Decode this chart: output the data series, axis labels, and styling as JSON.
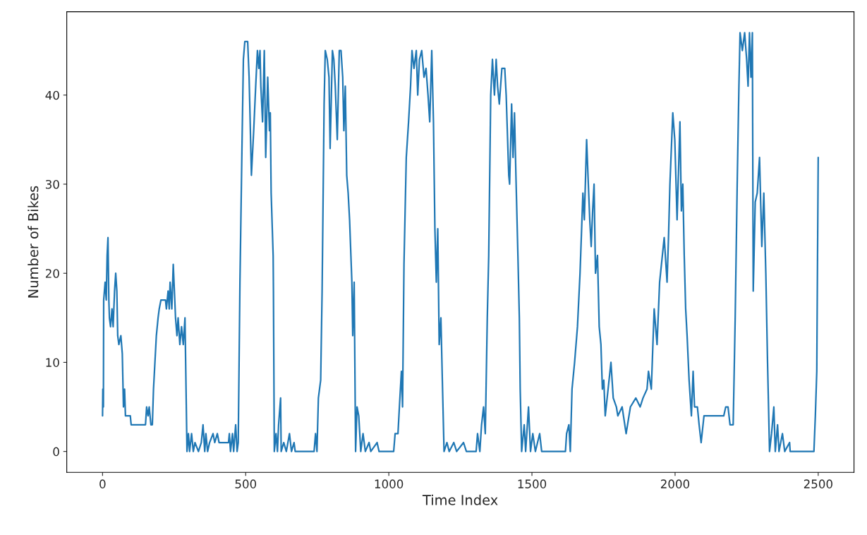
{
  "chart_data": {
    "type": "line",
    "xlabel": "Time Index",
    "ylabel": "Number of Bikes",
    "xlim": [
      -125,
      2625
    ],
    "ylim": [
      -2.35,
      49.35
    ],
    "xticks": [
      0,
      500,
      1000,
      1500,
      2000,
      2500
    ],
    "yticks": [
      0,
      10,
      20,
      30,
      40
    ],
    "grid": false,
    "marker": "none",
    "line_style": "solid",
    "series": [
      {
        "color": "#1f77b4",
        "x": [
          0,
          1,
          3,
          4,
          9,
          13,
          16,
          19,
          22,
          24,
          28,
          33,
          37,
          42,
          46,
          50,
          53,
          57,
          64,
          69,
          73,
          77,
          80,
          97,
          100,
          150,
          154,
          159,
          163,
          169,
          174,
          178,
          183,
          188,
          194,
          198,
          204,
          220,
          223,
          229,
          233,
          236,
          242,
          247,
          251,
          255,
          260,
          264,
          270,
          276,
          282,
          288,
          295,
          300,
          304,
          311,
          317,
          323,
          335,
          345,
          351,
          357,
          361,
          367,
          374,
          386,
          392,
          401,
          407,
          440,
          443,
          447,
          454,
          458,
          465,
          470,
          474,
          476,
          480,
          487,
          492,
          497,
          507,
          512,
          515,
          520,
          528,
          535,
          541,
          546,
          550,
          553,
          559,
          565,
          570,
          577,
          583,
          586,
          589,
          596,
          597,
          600,
          606,
          611,
          615,
          622,
          624,
          633,
          642,
          653,
          660,
          669,
          673,
          739,
          744,
          749,
          754,
          762,
          767,
          774,
          778,
          785,
          791,
          795,
          803,
          808,
          813,
          820,
          827,
          833,
          839,
          843,
          848,
          853,
          858,
          863,
          871,
          874,
          879,
          884,
          889,
          895,
          902,
          910,
          918,
          931,
          937,
          959,
          966,
          1017,
          1022,
          1032,
          1037,
          1044,
          1048,
          1053,
          1061,
          1069,
          1076,
          1081,
          1088,
          1096,
          1101,
          1107,
          1115,
          1123,
          1130,
          1137,
          1143,
          1150,
          1156,
          1161,
          1166,
          1171,
          1176,
          1182,
          1187,
          1193,
          1203,
          1211,
          1227,
          1237,
          1261,
          1271,
          1305,
          1310,
          1318,
          1324,
          1331,
          1337,
          1344,
          1349,
          1356,
          1362,
          1369,
          1375,
          1380,
          1386,
          1395,
          1405,
          1410,
          1412,
          1419,
          1422,
          1429,
          1434,
          1439,
          1444,
          1451,
          1456,
          1459,
          1464,
          1473,
          1478,
          1488,
          1495,
          1503,
          1512,
          1527,
          1534,
          1617,
          1621,
          1629,
          1634,
          1640,
          1649,
          1659,
          1668,
          1678,
          1683,
          1691,
          1697,
          1702,
          1707,
          1712,
          1717,
          1722,
          1729,
          1735,
          1741,
          1746,
          1751,
          1756,
          1766,
          1776,
          1784,
          1795,
          1800,
          1815,
          1829,
          1844,
          1863,
          1878,
          1888,
          1902,
          1907,
          1917,
          1927,
          1937,
          1946,
          1962,
          1972,
          1977,
          1982,
          1992,
          1999,
          2007,
          2017,
          2022,
          2027,
          2032,
          2037,
          2042,
          2049,
          2057,
          2063,
          2068,
          2078,
          2084,
          2091,
          2101,
          2170,
          2177,
          2185,
          2192,
          2203,
          2210,
          2217,
          2223,
          2227,
          2235,
          2243,
          2250,
          2255,
          2260,
          2265,
          2270,
          2273,
          2280,
          2287,
          2295,
          2303,
          2310,
          2317,
          2323,
          2330,
          2337,
          2345,
          2350,
          2358,
          2363,
          2375,
          2383,
          2400,
          2402,
          2485,
          2490,
          2495,
          2500
        ],
        "values": [
          4,
          7,
          5,
          17,
          19,
          17,
          22,
          24,
          17,
          15,
          14,
          16,
          14,
          18,
          20,
          18,
          13,
          12,
          13,
          11,
          5,
          7,
          4,
          4,
          3,
          3,
          5,
          4,
          5,
          3,
          3,
          7,
          10,
          13,
          15,
          16,
          17,
          17,
          16,
          18,
          16,
          19,
          16,
          21,
          18,
          15,
          13,
          15,
          12,
          14,
          12,
          15,
          0,
          2,
          0,
          2,
          0,
          1,
          0,
          1,
          3,
          0,
          2,
          0,
          1,
          2,
          1,
          2,
          1,
          1,
          2,
          0,
          2,
          0,
          3,
          0,
          1,
          7,
          19,
          34,
          44,
          46,
          46,
          42,
          38,
          31,
          36,
          41,
          45,
          43,
          45,
          41,
          37,
          45,
          33,
          42,
          36,
          38,
          29,
          22,
          18,
          0,
          2,
          0,
          3,
          6,
          0,
          1,
          0,
          2,
          0,
          1,
          0,
          0,
          2,
          0,
          6,
          8,
          18,
          39,
          45,
          44,
          42,
          34,
          45,
          44,
          41,
          35,
          45,
          45,
          42,
          36,
          41,
          31,
          29,
          26,
          19,
          13,
          19,
          0,
          5,
          4,
          0,
          2,
          0,
          1,
          0,
          1,
          0,
          0,
          2,
          2,
          5,
          9,
          5,
          21,
          33,
          37,
          41,
          45,
          43,
          45,
          40,
          44,
          45,
          42,
          43,
          40,
          37,
          45,
          37,
          25,
          19,
          25,
          12,
          15,
          8,
          0,
          1,
          0,
          1,
          0,
          1,
          0,
          0,
          2,
          0,
          3,
          5,
          2,
          15,
          22,
          40,
          44,
          40,
          44,
          41,
          39,
          43,
          43,
          40,
          38,
          31,
          30,
          39,
          33,
          38,
          31,
          22,
          15,
          7,
          0,
          3,
          0,
          5,
          0,
          2,
          0,
          2,
          0,
          0,
          2,
          3,
          0,
          7,
          10,
          14,
          20,
          29,
          26,
          35,
          30,
          26,
          23,
          27,
          30,
          20,
          22,
          14,
          12,
          7,
          8,
          4,
          7,
          10,
          6,
          5,
          4,
          5,
          2,
          5,
          6,
          5,
          6,
          7,
          9,
          7,
          16,
          12,
          19,
          24,
          19,
          24,
          30,
          38,
          35,
          26,
          37,
          27,
          30,
          22,
          16,
          13,
          8,
          4,
          9,
          5,
          5,
          3,
          1,
          4,
          4,
          5,
          5,
          3,
          3,
          15,
          30,
          41,
          47,
          45,
          47,
          44,
          41,
          47,
          42,
          47,
          18,
          28,
          29,
          33,
          23,
          29,
          20,
          10,
          0,
          2,
          5,
          0,
          3,
          0,
          2,
          0,
          1,
          0,
          0,
          4,
          9,
          33
        ]
      }
    ]
  }
}
